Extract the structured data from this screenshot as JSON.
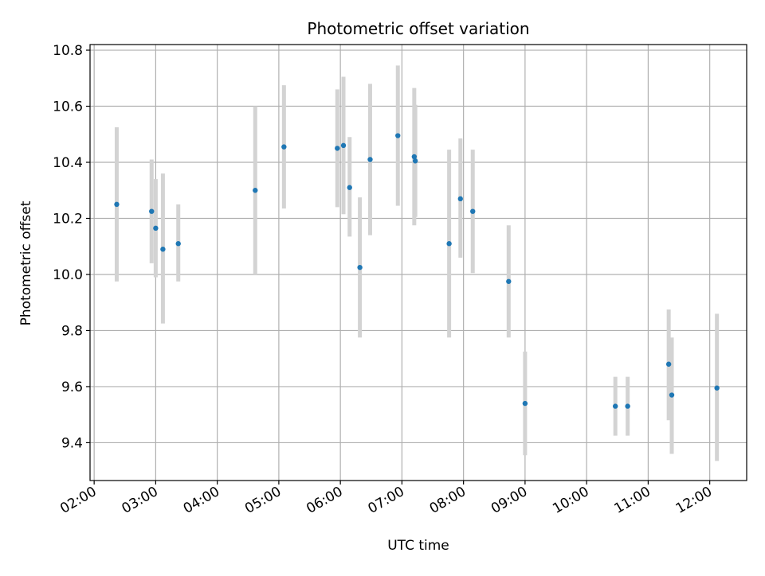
{
  "chart_data": {
    "type": "scatter",
    "title": "Photometric offset variation",
    "xlabel": "UTC time",
    "ylabel": "Photometric offset",
    "x_ticks": [
      "02:00",
      "03:00",
      "04:00",
      "05:00",
      "06:00",
      "07:00",
      "08:00",
      "09:00",
      "10:00",
      "11:00",
      "12:00"
    ],
    "y_ticks": [
      "9.4",
      "9.6",
      "9.8",
      "10.0",
      "10.2",
      "10.4",
      "10.6",
      "10.8"
    ],
    "xlim": [
      "01:56",
      "12:36"
    ],
    "ylim": [
      9.265,
      10.82
    ],
    "grid": true,
    "colors": {
      "points": "#1f77b4",
      "errorbars": "#d3d3d3",
      "grid": "#b0b0b0"
    },
    "points": [
      {
        "x": "02:22",
        "y": 10.25,
        "lo": 9.975,
        "hi": 10.525
      },
      {
        "x": "02:56",
        "y": 10.225,
        "lo": 10.04,
        "hi": 10.41
      },
      {
        "x": "03:00",
        "y": 10.165,
        "lo": 9.99,
        "hi": 10.34
      },
      {
        "x": "03:07",
        "y": 10.09,
        "lo": 9.825,
        "hi": 10.36
      },
      {
        "x": "03:22",
        "y": 10.11,
        "lo": 9.975,
        "hi": 10.25
      },
      {
        "x": "04:37",
        "y": 10.3,
        "lo": 10.0,
        "hi": 10.6
      },
      {
        "x": "05:05",
        "y": 10.455,
        "lo": 10.235,
        "hi": 10.675
      },
      {
        "x": "05:57",
        "y": 10.45,
        "lo": 10.24,
        "hi": 10.66
      },
      {
        "x": "06:03",
        "y": 10.46,
        "lo": 10.215,
        "hi": 10.705
      },
      {
        "x": "06:09",
        "y": 10.31,
        "lo": 10.135,
        "hi": 10.49
      },
      {
        "x": "06:19",
        "y": 10.025,
        "lo": 9.775,
        "hi": 10.275
      },
      {
        "x": "06:29",
        "y": 10.41,
        "lo": 10.14,
        "hi": 10.68
      },
      {
        "x": "06:56",
        "y": 10.495,
        "lo": 10.245,
        "hi": 10.745
      },
      {
        "x": "07:12",
        "y": 10.42,
        "lo": 10.175,
        "hi": 10.665
      },
      {
        "x": "07:13",
        "y": 10.405,
        "lo": 10.205,
        "hi": 10.605
      },
      {
        "x": "07:46",
        "y": 10.11,
        "lo": 9.775,
        "hi": 10.445
      },
      {
        "x": "07:57",
        "y": 10.27,
        "lo": 10.06,
        "hi": 10.485
      },
      {
        "x": "08:09",
        "y": 10.225,
        "lo": 10.005,
        "hi": 10.445
      },
      {
        "x": "08:44",
        "y": 9.975,
        "lo": 9.775,
        "hi": 10.175
      },
      {
        "x": "09:00",
        "y": 9.54,
        "lo": 9.355,
        "hi": 9.725
      },
      {
        "x": "10:28",
        "y": 9.53,
        "lo": 9.425,
        "hi": 9.635
      },
      {
        "x": "10:40",
        "y": 9.53,
        "lo": 9.425,
        "hi": 9.635
      },
      {
        "x": "11:20",
        "y": 9.68,
        "lo": 9.48,
        "hi": 9.875
      },
      {
        "x": "11:23",
        "y": 9.57,
        "lo": 9.36,
        "hi": 9.775
      },
      {
        "x": "12:07",
        "y": 9.595,
        "lo": 9.335,
        "hi": 9.86
      }
    ]
  }
}
